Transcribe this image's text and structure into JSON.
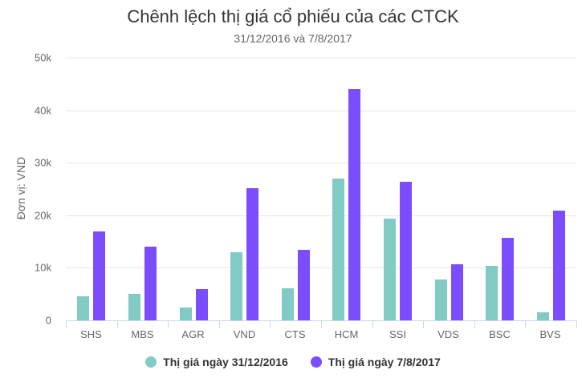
{
  "title": "Chênh lệch thị giá cổ phiếu của các CTCK",
  "subtitle": "31/12/2016 và 7/8/2017",
  "colors": {
    "series1": "#80cbc4",
    "series2": "#7c4dff"
  },
  "chart_data": {
    "type": "bar",
    "title": "Chênh lệch thị giá cổ phiếu của các CTCK",
    "subtitle": "31/12/2016 và 7/8/2017",
    "xlabel": "",
    "ylabel": "Đơn vị: VND",
    "ylim": [
      0,
      50000
    ],
    "yticks": [
      "0",
      "10k",
      "20k",
      "30k",
      "40k",
      "50k"
    ],
    "grid": true,
    "legend_position": "bottom",
    "categories": [
      "SHS",
      "MBS",
      "AGR",
      "VND",
      "CTS",
      "HCM",
      "SSI",
      "VDS",
      "BSC",
      "BVS"
    ],
    "series": [
      {
        "name": "Thị giá ngày 31/12/2016",
        "color": "#80cbc4",
        "values": [
          4600,
          5000,
          2400,
          12900,
          6100,
          27000,
          19300,
          7800,
          10300,
          1500
        ]
      },
      {
        "name": "Thị giá ngày 7/8/2017",
        "color": "#7c4dff",
        "values": [
          16900,
          14000,
          5900,
          25100,
          13400,
          44100,
          26400,
          10600,
          15700,
          20900
        ]
      }
    ]
  }
}
